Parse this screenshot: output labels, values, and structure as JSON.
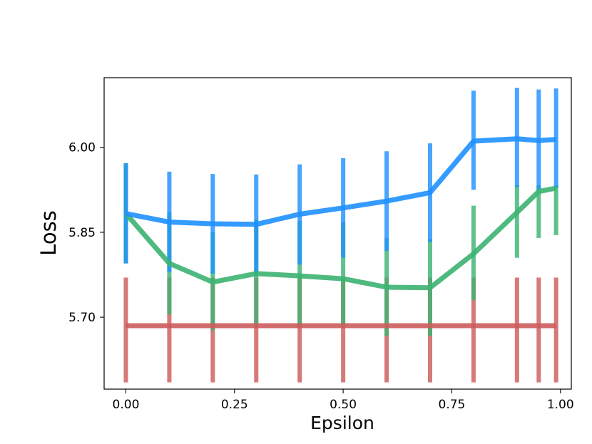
{
  "chart_data": {
    "type": "line",
    "title": "",
    "xlabel": "Epsilon",
    "ylabel": "Loss",
    "xlim": [
      -0.05,
      1.025
    ],
    "ylim": [
      5.573,
      6.123
    ],
    "x_ticks": [
      0.0,
      0.25,
      0.5,
      0.75,
      1.0
    ],
    "x_tick_labels": [
      "0.00",
      "0.25",
      "0.50",
      "0.75",
      "1.00"
    ],
    "y_ticks": [
      5.7,
      5.85,
      6.0
    ],
    "y_tick_labels": [
      "5.70",
      "5.85",
      "6.00"
    ],
    "grid": false,
    "legend": "none",
    "x": [
      0.0,
      0.1,
      0.2,
      0.3,
      0.4,
      0.5,
      0.6,
      0.7,
      0.8,
      0.9,
      0.95,
      0.99
    ],
    "series": [
      {
        "color": "#cd5c5c",
        "y": [
          5.685,
          5.685,
          5.685,
          5.685,
          5.685,
          5.685,
          5.685,
          5.685,
          5.685,
          5.685,
          5.685,
          5.685
        ],
        "err_low": [
          5.585,
          5.585,
          5.585,
          5.585,
          5.585,
          5.585,
          5.585,
          5.585,
          5.585,
          5.585,
          5.585,
          5.585
        ],
        "err_high": [
          5.77,
          5.77,
          5.77,
          5.77,
          5.77,
          5.77,
          5.77,
          5.77,
          5.77,
          5.77,
          5.77,
          5.77
        ]
      },
      {
        "color": "#3cb371",
        "y": [
          5.883,
          5.795,
          5.762,
          5.777,
          5.773,
          5.768,
          5.753,
          5.752,
          5.812,
          5.885,
          5.922,
          5.928
        ],
        "err_low": [
          5.795,
          5.705,
          5.677,
          5.685,
          5.682,
          5.683,
          5.667,
          5.667,
          5.73,
          5.805,
          5.84,
          5.845
        ],
        "err_high": [
          5.972,
          5.885,
          5.85,
          5.872,
          5.87,
          5.868,
          5.84,
          5.838,
          5.897,
          5.933,
          5.933,
          5.933
        ]
      },
      {
        "color": "#1e90ff",
        "y": [
          5.883,
          5.868,
          5.865,
          5.864,
          5.882,
          5.893,
          5.905,
          5.92,
          6.011,
          6.015,
          6.012,
          6.014
        ],
        "err_low": [
          5.795,
          5.78,
          5.777,
          5.775,
          5.793,
          5.805,
          5.817,
          5.833,
          5.925,
          5.93,
          5.925,
          5.928
        ],
        "err_high": [
          5.972,
          5.957,
          5.953,
          5.952,
          5.97,
          5.981,
          5.993,
          6.007,
          6.1,
          6.105,
          6.102,
          6.104
        ]
      }
    ],
    "colors": {
      "axes": "#000000",
      "background": "#ffffff"
    }
  }
}
